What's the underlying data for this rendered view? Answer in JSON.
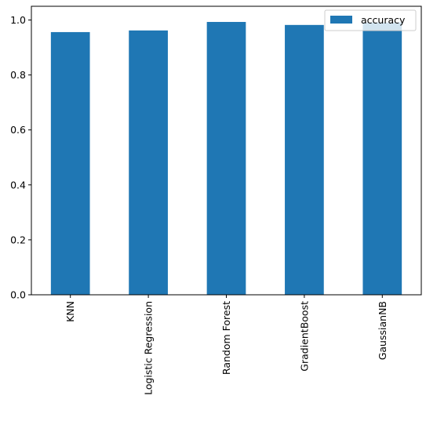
{
  "chart_data": {
    "type": "bar",
    "categories": [
      "KNN",
      "Logistic Regression",
      "Random Forest",
      "GradientBoost",
      "GaussianNB"
    ],
    "series": [
      {
        "name": "accuracy",
        "color": "#1f77b4",
        "values": [
          0.956,
          0.962,
          0.993,
          0.982,
          0.991
        ]
      }
    ],
    "title": "",
    "xlabel": "",
    "ylabel": "",
    "ylim": [
      0,
      1.05
    ],
    "yticks": [
      "0.0",
      "0.2",
      "0.4",
      "0.6",
      "0.8",
      "1.0"
    ],
    "grid": false,
    "legend_position": "top-right"
  }
}
